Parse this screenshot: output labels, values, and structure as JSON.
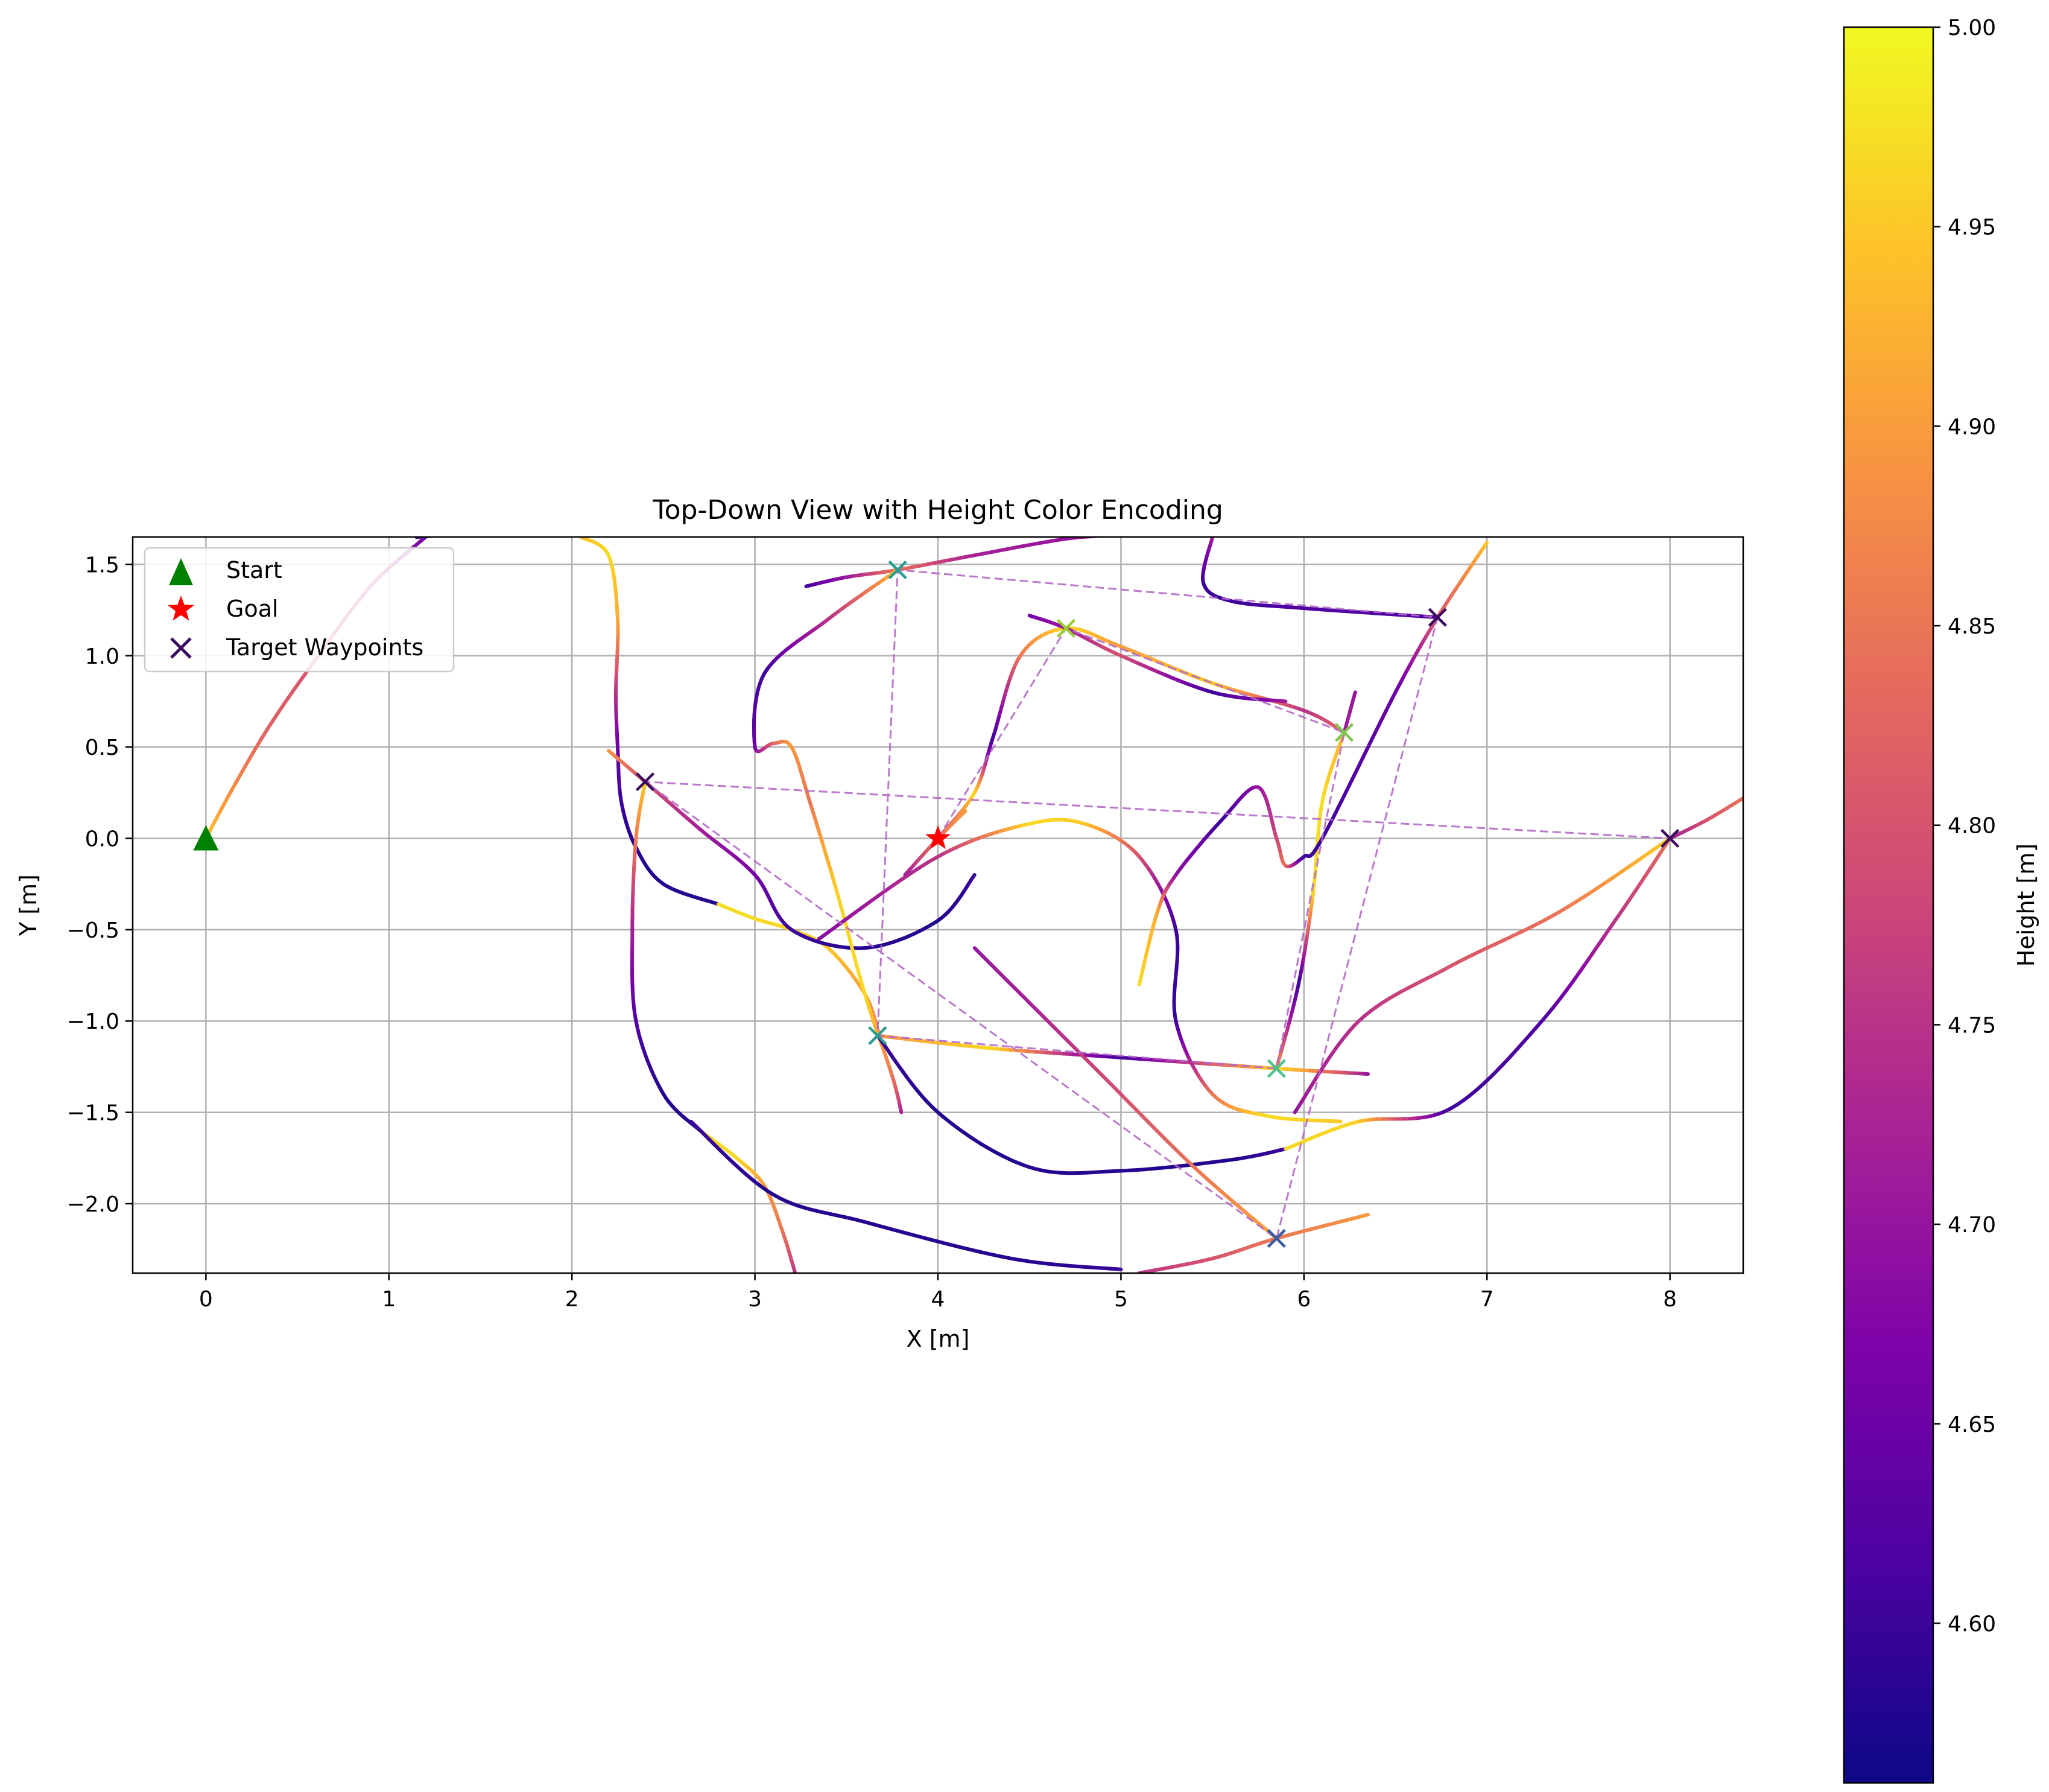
{
  "chart_data": {
    "type": "line",
    "title": "Top-Down View with Height Color Encoding",
    "xlabel": "X [m]",
    "ylabel": "Y [m]",
    "xlim": [
      -0.4,
      8.4
    ],
    "ylim": [
      -2.38,
      1.65
    ],
    "xticks": [
      0,
      1,
      2,
      3,
      4,
      5,
      6,
      7,
      8
    ],
    "xtick_labels": [
      "0",
      "1",
      "2",
      "3",
      "4",
      "5",
      "6",
      "7",
      "8"
    ],
    "yticks": [
      -2.0,
      -1.5,
      -1.0,
      -0.5,
      0.0,
      0.5,
      1.0,
      1.5
    ],
    "ytick_labels": [
      "−2.0",
      "−1.5",
      "−1.0",
      "−0.5",
      "0.0",
      "0.5",
      "1.0",
      "1.5"
    ],
    "grid": true,
    "legend": {
      "placement": "upper-left",
      "entries": [
        {
          "label": "Start",
          "marker": "triangle",
          "color": "#008000"
        },
        {
          "label": "Goal",
          "marker": "star",
          "color": "#ff0000"
        },
        {
          "label": "Target Waypoints",
          "marker": "x",
          "color": "#3b0a5e"
        }
      ]
    },
    "colorbar": {
      "label": "Height [m]",
      "colormap": "plasma",
      "range": [
        4.56,
        5.0
      ],
      "ticks": [
        4.6,
        4.65,
        4.7,
        4.75,
        4.8,
        4.85,
        4.9,
        4.95,
        5.0
      ],
      "tick_labels": [
        "4.60",
        "4.65",
        "4.70",
        "4.75",
        "4.80",
        "4.85",
        "4.90",
        "4.95",
        "5.00"
      ]
    },
    "start": {
      "x": 0,
      "y": 0
    },
    "goal": {
      "x": 4,
      "y": 0
    },
    "waypoints": [
      {
        "x": 3.78,
        "y": 1.47
      },
      {
        "x": 6.73,
        "y": 1.21
      },
      {
        "x": 4.7,
        "y": 1.15
      },
      {
        "x": 6.22,
        "y": 0.58
      },
      {
        "x": 2.4,
        "y": 0.31
      },
      {
        "x": 8.0,
        "y": 0.0
      },
      {
        "x": 3.67,
        "y": -1.08
      },
      {
        "x": 5.85,
        "y": -1.26
      },
      {
        "x": 5.85,
        "y": -2.19
      }
    ],
    "waypoint_route": [
      [
        4.0,
        0.0
      ],
      [
        4.7,
        1.15
      ],
      [
        6.22,
        0.58
      ],
      [
        6.1,
        0.0
      ],
      [
        5.85,
        -1.26
      ],
      [
        3.67,
        -1.08
      ],
      [
        3.78,
        1.47
      ],
      [
        6.73,
        1.21
      ],
      [
        5.85,
        -2.19
      ],
      [
        2.4,
        0.31
      ],
      [
        8.0,
        0.0
      ]
    ],
    "trajectory_segments": [
      {
        "points": [
          [
            0,
            0
          ],
          [
            0.15,
            0.28
          ],
          [
            0.35,
            0.62
          ],
          [
            0.6,
            0.98
          ],
          [
            0.9,
            1.38
          ],
          [
            1.2,
            1.65
          ]
        ],
        "heights": [
          4.95,
          4.88,
          4.82,
          4.8,
          4.75,
          4.66
        ]
      },
      {
        "points": [
          [
            1.15,
            1.65
          ],
          [
            1.3,
            1.66
          ]
        ],
        "heights": [
          4.6,
          4.6
        ]
      },
      {
        "points": [
          [
            2.05,
            1.65
          ],
          [
            2.2,
            1.55
          ],
          [
            2.25,
            1.2
          ],
          [
            2.24,
            0.8
          ],
          [
            2.25,
            0.5
          ],
          [
            2.27,
            0.2
          ],
          [
            2.35,
            -0.05
          ],
          [
            2.5,
            -0.25
          ],
          [
            2.8,
            -0.36
          ]
        ],
        "heights": [
          4.93,
          4.97,
          4.92,
          4.75,
          4.65,
          4.6,
          4.58,
          4.58,
          4.58
        ]
      },
      {
        "points": [
          [
            2.8,
            -0.36
          ],
          [
            3.0,
            -0.44
          ],
          [
            3.2,
            -0.5
          ],
          [
            3.4,
            -0.6
          ],
          [
            3.6,
            -0.85
          ],
          [
            3.68,
            -1.08
          ]
        ],
        "heights": [
          4.97,
          4.97,
          4.96,
          4.95,
          4.9,
          4.85
        ]
      },
      {
        "points": [
          [
            2.2,
            0.48
          ],
          [
            2.4,
            0.31
          ],
          [
            2.7,
            0.05
          ],
          [
            3.0,
            -0.2
          ],
          [
            3.2,
            -0.5
          ],
          [
            3.6,
            -0.6
          ],
          [
            4.0,
            -0.45
          ],
          [
            4.2,
            -0.2
          ]
        ],
        "heights": [
          4.9,
          4.8,
          4.72,
          4.66,
          4.6,
          4.58,
          4.58,
          4.6
        ]
      },
      {
        "points": [
          [
            2.4,
            0.31
          ],
          [
            2.35,
            0.0
          ],
          [
            2.33,
            -0.5
          ],
          [
            2.35,
            -1.0
          ],
          [
            2.5,
            -1.4
          ],
          [
            2.7,
            -1.6
          ]
        ],
        "heights": [
          4.97,
          4.86,
          4.72,
          4.62,
          4.58,
          4.58
        ]
      },
      {
        "points": [
          [
            2.7,
            -1.6
          ],
          [
            2.9,
            -1.75
          ],
          [
            3.05,
            -1.9
          ],
          [
            3.15,
            -2.15
          ],
          [
            3.22,
            -2.38
          ]
        ],
        "heights": [
          4.96,
          4.97,
          4.9,
          4.85,
          4.75
        ]
      },
      {
        "points": [
          [
            3.28,
            1.38
          ],
          [
            3.5,
            1.43
          ],
          [
            3.78,
            1.47
          ],
          [
            4.2,
            1.55
          ],
          [
            4.7,
            1.64
          ],
          [
            5.0,
            1.66
          ]
        ],
        "heights": [
          4.6,
          4.7,
          4.85,
          4.72,
          4.7,
          4.72
        ]
      },
      {
        "points": [
          [
            3.78,
            1.47
          ],
          [
            3.4,
            1.2
          ],
          [
            3.05,
            0.9
          ],
          [
            3.0,
            0.5
          ],
          [
            3.1,
            0.52
          ],
          [
            3.2,
            0.5
          ],
          [
            3.3,
            0.2
          ],
          [
            3.45,
            -0.3
          ],
          [
            3.6,
            -0.85
          ],
          [
            3.75,
            -1.3
          ],
          [
            3.8,
            -1.5
          ]
        ],
        "heights": [
          4.96,
          4.75,
          4.6,
          4.65,
          4.82,
          4.9,
          4.85,
          4.96,
          4.97,
          4.85,
          4.72
        ]
      },
      {
        "points": [
          [
            3.67,
            -1.08
          ],
          [
            4.3,
            -1.15
          ],
          [
            5.0,
            -1.2
          ],
          [
            5.85,
            -1.26
          ],
          [
            6.35,
            -1.29
          ]
        ],
        "heights": [
          4.88,
          4.97,
          4.6,
          4.97,
          4.7
        ]
      },
      {
        "points": [
          [
            3.67,
            -1.08
          ],
          [
            4.0,
            -1.5
          ],
          [
            4.5,
            -1.8
          ],
          [
            5.0,
            -1.82
          ],
          [
            5.6,
            -1.76
          ],
          [
            5.9,
            -1.7
          ]
        ],
        "heights": [
          4.6,
          4.58,
          4.58,
          4.58,
          4.58,
          4.6
        ]
      },
      {
        "points": [
          [
            5.9,
            -1.7
          ],
          [
            6.3,
            -1.55
          ],
          [
            6.8,
            -1.48
          ],
          [
            7.3,
            -1.0
          ],
          [
            7.7,
            -0.45
          ],
          [
            8.0,
            0.0
          ]
        ],
        "heights": [
          4.97,
          4.96,
          4.6,
          4.62,
          4.75,
          4.85
        ]
      },
      {
        "points": [
          [
            8.0,
            0.0
          ],
          [
            7.4,
            -0.4
          ],
          [
            6.8,
            -0.7
          ],
          [
            6.3,
            -1.0
          ],
          [
            5.95,
            -1.5
          ]
        ],
        "heights": [
          4.97,
          4.85,
          4.8,
          4.75,
          4.7
        ]
      },
      {
        "points": [
          [
            8.0,
            0.0
          ],
          [
            8.2,
            0.1
          ],
          [
            8.4,
            0.22
          ]
        ],
        "heights": [
          4.7,
          4.8,
          4.85
        ]
      },
      {
        "points": [
          [
            2.65,
            -1.55
          ],
          [
            3.1,
            -1.95
          ],
          [
            3.6,
            -2.1
          ],
          [
            4.4,
            -2.3
          ],
          [
            5.0,
            -2.36
          ]
        ],
        "heights": [
          4.6,
          4.58,
          4.58,
          4.58,
          4.6
        ]
      },
      {
        "points": [
          [
            5.1,
            -2.38
          ],
          [
            5.5,
            -2.3
          ],
          [
            5.85,
            -2.19
          ],
          [
            6.35,
            -2.06
          ]
        ],
        "heights": [
          4.75,
          4.8,
          4.85,
          4.9
        ]
      },
      {
        "points": [
          [
            5.85,
            -2.19
          ],
          [
            5.4,
            -1.8
          ],
          [
            4.9,
            -1.3
          ],
          [
            4.5,
            -0.9
          ],
          [
            4.2,
            -0.6
          ]
        ],
        "heights": [
          4.92,
          4.85,
          4.78,
          4.72,
          4.7
        ]
      },
      {
        "points": [
          [
            4.0,
            0.0
          ],
          [
            4.2,
            0.25
          ],
          [
            4.3,
            0.55
          ],
          [
            4.45,
            1.0
          ],
          [
            4.7,
            1.15
          ],
          [
            5.0,
            1.05
          ],
          [
            5.5,
            0.85
          ],
          [
            6.0,
            0.7
          ],
          [
            6.22,
            0.58
          ]
        ],
        "heights": [
          4.7,
          4.97,
          4.6,
          4.85,
          4.97,
          4.9,
          4.95,
          4.75,
          4.85
        ]
      },
      {
        "points": [
          [
            3.82,
            -0.2
          ],
          [
            4.0,
            0.0
          ],
          [
            4.15,
            0.15
          ]
        ],
        "heights": [
          4.7,
          4.85,
          4.9
        ]
      },
      {
        "points": [
          [
            4.5,
            1.22
          ],
          [
            4.7,
            1.15
          ],
          [
            5.0,
            1.0
          ],
          [
            5.5,
            0.8
          ],
          [
            5.9,
            0.75
          ]
        ],
        "heights": [
          4.66,
          4.7,
          4.8,
          4.6,
          4.72
        ]
      },
      {
        "points": [
          [
            6.22,
            0.58
          ],
          [
            6.1,
            0.2
          ],
          [
            6.05,
            -0.3
          ],
          [
            5.97,
            -0.8
          ],
          [
            5.85,
            -1.26
          ]
        ],
        "heights": [
          4.92,
          4.97,
          4.97,
          4.6,
          4.9
        ]
      },
      {
        "points": [
          [
            6.22,
            0.58
          ],
          [
            6.28,
            0.8
          ]
        ],
        "heights": [
          4.72,
          4.7
        ]
      },
      {
        "points": [
          [
            3.35,
            -0.55
          ],
          [
            4.0,
            -0.1
          ],
          [
            4.5,
            0.08
          ],
          [
            4.8,
            0.08
          ],
          [
            5.1,
            -0.1
          ],
          [
            5.3,
            -0.5
          ],
          [
            5.3,
            -1.0
          ],
          [
            5.5,
            -1.4
          ],
          [
            5.8,
            -1.52
          ],
          [
            6.2,
            -1.55
          ]
        ],
        "heights": [
          4.68,
          4.75,
          4.97,
          4.95,
          4.8,
          4.6,
          4.6,
          4.85,
          4.97,
          4.95
        ]
      },
      {
        "points": [
          [
            5.1,
            -0.8
          ],
          [
            5.2,
            -0.4
          ],
          [
            5.3,
            -0.2
          ],
          [
            5.55,
            0.1
          ],
          [
            5.75,
            0.28
          ],
          [
            5.85,
            0.0
          ],
          [
            5.9,
            -0.15
          ],
          [
            6.0,
            -0.1
          ],
          [
            6.1,
            0.0
          ],
          [
            6.5,
            0.8
          ],
          [
            6.73,
            1.21
          ],
          [
            7.0,
            1.62
          ]
        ],
        "heights": [
          4.97,
          4.92,
          4.7,
          4.6,
          4.7,
          4.78,
          4.85,
          4.6,
          4.6,
          4.65,
          4.8,
          4.95
        ]
      },
      {
        "points": [
          [
            5.5,
            1.65
          ],
          [
            5.45,
            1.4
          ],
          [
            5.6,
            1.3
          ],
          [
            6.0,
            1.26
          ],
          [
            6.73,
            1.21
          ]
        ],
        "heights": [
          4.72,
          4.6,
          4.6,
          4.62,
          4.62
        ]
      }
    ]
  }
}
